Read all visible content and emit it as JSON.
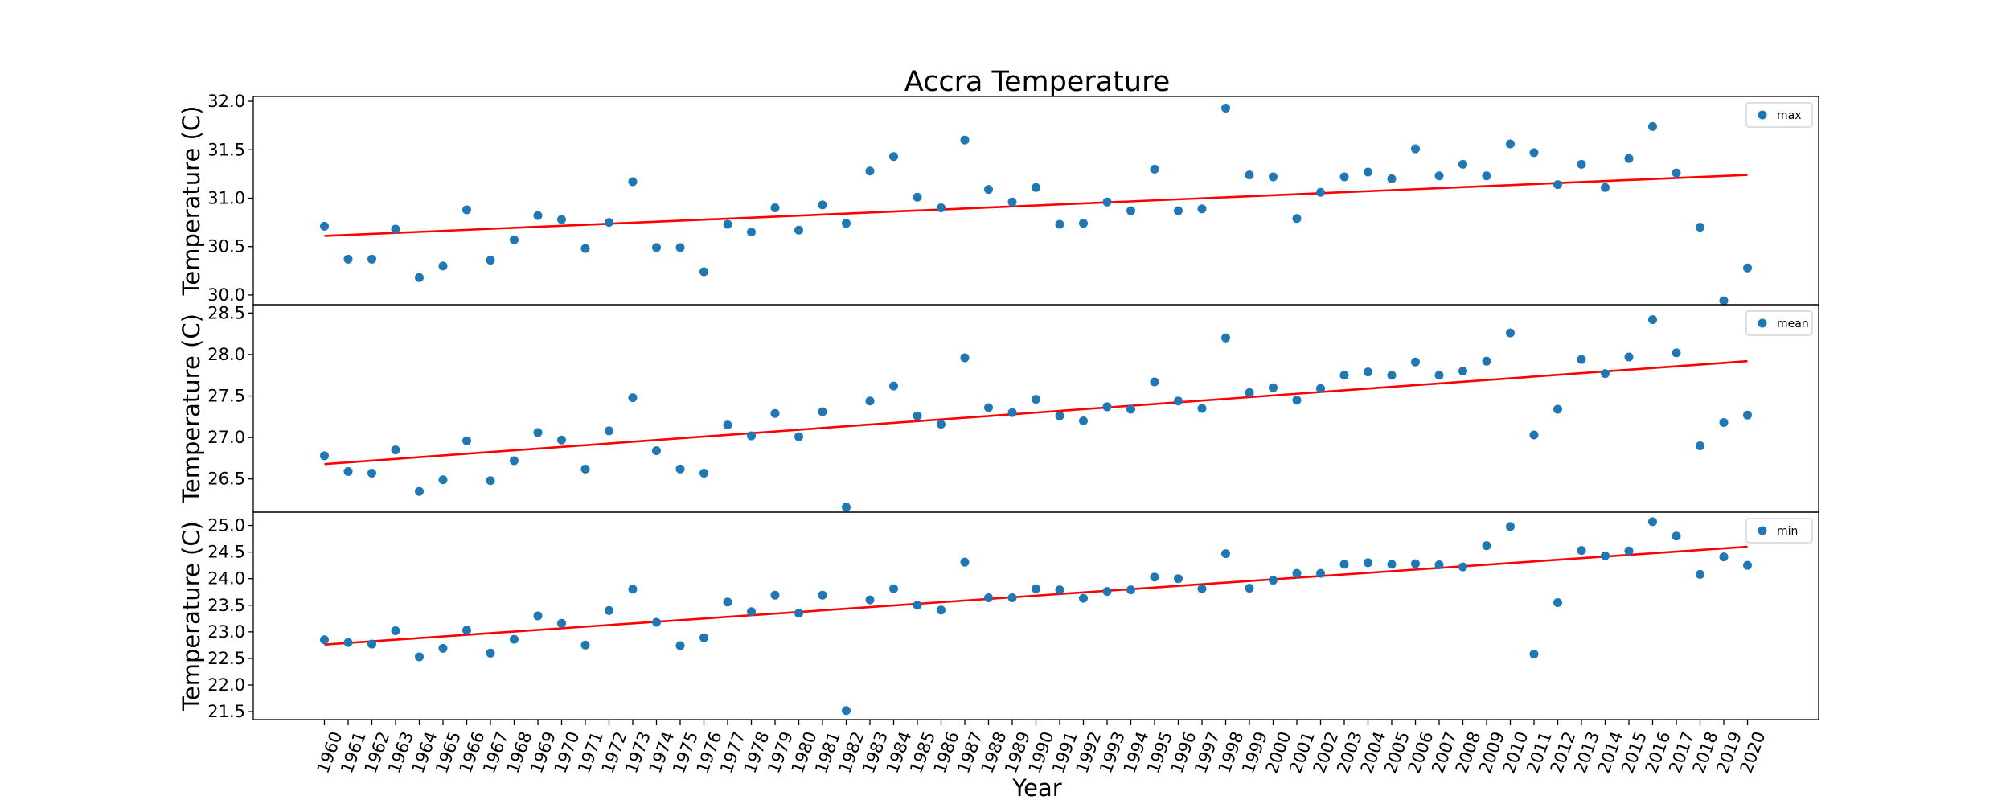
{
  "chart_data": {
    "type": "scatter",
    "title": "Accra Temperature",
    "xlabel": "Year",
    "ylabel": "Temperature (C)",
    "x": [
      1960,
      1961,
      1962,
      1963,
      1964,
      1965,
      1966,
      1967,
      1968,
      1969,
      1970,
      1971,
      1972,
      1973,
      1974,
      1975,
      1976,
      1977,
      1978,
      1979,
      1980,
      1981,
      1982,
      1983,
      1984,
      1985,
      1986,
      1987,
      1988,
      1989,
      1990,
      1991,
      1992,
      1993,
      1994,
      1995,
      1996,
      1997,
      1998,
      1999,
      2000,
      2001,
      2002,
      2003,
      2004,
      2005,
      2006,
      2007,
      2008,
      2009,
      2010,
      2011,
      2012,
      2013,
      2014,
      2015,
      2016,
      2017,
      2018,
      2019,
      2020
    ],
    "panels": [
      {
        "name": "max",
        "ylim": [
          29.9,
          32.05
        ],
        "yticks": [
          "30.0",
          "30.5",
          "31.0",
          "31.5",
          "32.0"
        ],
        "trend": [
          30.61,
          31.24
        ],
        "values": [
          30.71,
          30.37,
          30.37,
          30.68,
          30.18,
          30.3,
          30.88,
          30.36,
          30.57,
          30.82,
          30.78,
          30.48,
          30.75,
          31.17,
          30.49,
          30.49,
          30.24,
          30.73,
          30.65,
          30.9,
          30.67,
          30.93,
          30.74,
          31.28,
          31.43,
          31.01,
          30.9,
          31.6,
          31.09,
          30.96,
          31.11,
          30.73,
          30.74,
          30.96,
          30.87,
          31.3,
          30.87,
          30.89,
          31.93,
          31.24,
          31.22,
          30.79,
          31.06,
          31.22,
          31.27,
          31.2,
          31.51,
          31.23,
          31.35,
          31.23,
          31.56,
          31.47,
          31.14,
          31.35,
          31.11,
          31.41,
          31.74,
          31.26,
          30.7,
          29.94,
          30.28
        ],
        "legend": "max"
      },
      {
        "name": "mean",
        "ylim": [
          26.1,
          28.6
        ],
        "yticks": [
          "26.5",
          "27.0",
          "27.5",
          "28.0",
          "28.5"
        ],
        "trend": [
          26.68,
          27.92
        ],
        "values": [
          26.78,
          26.59,
          26.57,
          26.85,
          26.35,
          26.49,
          26.96,
          26.48,
          26.72,
          27.06,
          26.97,
          26.62,
          27.08,
          27.48,
          26.84,
          26.62,
          26.57,
          27.15,
          27.02,
          27.29,
          27.01,
          27.31,
          26.16,
          27.44,
          27.62,
          27.26,
          27.16,
          27.96,
          27.36,
          27.3,
          27.46,
          27.26,
          27.2,
          27.37,
          27.34,
          27.67,
          27.44,
          27.35,
          28.2,
          27.54,
          27.6,
          27.45,
          27.59,
          27.75,
          27.79,
          27.75,
          27.91,
          27.75,
          27.8,
          27.92,
          28.26,
          27.03,
          27.34,
          27.94,
          27.77,
          27.97,
          28.42,
          28.02,
          26.9,
          27.18,
          27.27
        ],
        "legend": "mean"
      },
      {
        "name": "min",
        "ylim": [
          21.35,
          25.25
        ],
        "yticks": [
          "21.5",
          "22.0",
          "22.5",
          "23.0",
          "23.5",
          "24.0",
          "24.5",
          "25.0"
        ],
        "trend": [
          22.76,
          24.6
        ],
        "values": [
          22.85,
          22.8,
          22.77,
          23.02,
          22.53,
          22.69,
          23.03,
          22.6,
          22.86,
          23.3,
          23.16,
          22.75,
          23.4,
          23.8,
          23.18,
          22.74,
          22.89,
          23.56,
          23.38,
          23.69,
          23.35,
          23.69,
          21.52,
          23.6,
          23.81,
          23.5,
          23.41,
          24.31,
          23.64,
          23.64,
          23.81,
          23.79,
          23.63,
          23.76,
          23.79,
          24.03,
          24.0,
          23.81,
          24.47,
          23.82,
          23.97,
          24.1,
          24.1,
          24.27,
          24.3,
          24.27,
          24.28,
          24.26,
          24.22,
          24.62,
          24.98,
          22.58,
          23.55,
          24.53,
          24.43,
          24.52,
          25.07,
          24.8,
          24.08,
          24.41,
          24.25
        ],
        "legend": "min"
      }
    ]
  }
}
